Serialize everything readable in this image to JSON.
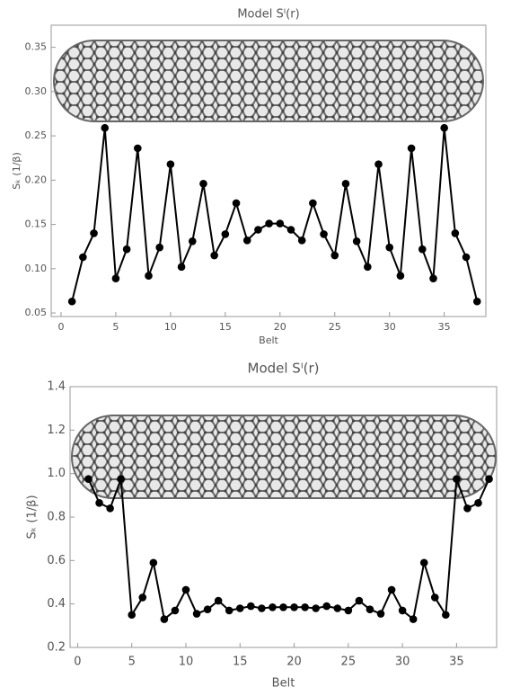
{
  "chart_data": [
    {
      "type": "line",
      "title": "Model Sᴵ(r)",
      "x_label": "Belt",
      "y_label": "Sₖ (1/β)",
      "x": [
        1,
        2,
        3,
        4,
        5,
        6,
        7,
        8,
        9,
        10,
        11,
        12,
        13,
        14,
        15,
        16,
        17,
        18,
        19,
        20,
        21,
        22,
        23,
        24,
        25,
        26,
        27,
        28,
        29,
        30,
        31,
        32,
        33,
        34,
        35,
        36,
        37,
        38
      ],
      "series": [
        {
          "color": "#000000",
          "values": [
            0.063,
            0.113,
            0.14,
            0.259,
            0.089,
            0.122,
            0.236,
            0.092,
            0.124,
            0.218,
            0.102,
            0.131,
            0.196,
            0.115,
            0.139,
            0.174,
            0.132,
            0.144,
            0.151,
            0.151,
            0.144,
            0.132,
            0.174,
            0.139,
            0.115,
            0.196,
            0.131,
            0.102,
            0.218,
            0.124,
            0.092,
            0.236,
            0.122,
            0.089,
            0.259,
            0.14,
            0.113,
            0.063
          ]
        }
      ],
      "xlim": [
        -0.9,
        38.8
      ],
      "xticks": [
        0,
        5,
        10,
        15,
        20,
        25,
        30,
        35
      ],
      "ylim": [
        0.046,
        0.375
      ],
      "yticks": [
        0.05,
        {
          "value": 0.1,
          "label": "0.10"
        },
        0.15,
        {
          "value": 0.2,
          "label": "0.20"
        },
        0.25,
        {
          "value": 0.3,
          "label": "0.30"
        },
        0.35
      ]
    },
    {
      "type": "line",
      "title": "Model Sᴵ(r)",
      "x_label": "Belt",
      "y_label": "Sₖ (1/β)",
      "x": [
        1,
        2,
        3,
        4,
        5,
        6,
        7,
        8,
        9,
        10,
        11,
        12,
        13,
        14,
        15,
        16,
        17,
        18,
        19,
        20,
        21,
        22,
        23,
        24,
        25,
        26,
        27,
        28,
        29,
        30,
        31,
        32,
        33,
        34,
        35,
        36,
        37,
        38
      ],
      "series": [
        {
          "color": "#000000",
          "values": [
            0.975,
            0.865,
            0.84,
            0.975,
            0.35,
            0.43,
            0.59,
            0.33,
            0.37,
            0.465,
            0.355,
            0.375,
            0.415,
            0.37,
            0.38,
            0.39,
            0.38,
            0.385,
            0.385,
            0.385,
            0.385,
            0.38,
            0.39,
            0.38,
            0.37,
            0.415,
            0.375,
            0.355,
            0.465,
            0.37,
            0.33,
            0.59,
            0.43,
            0.35,
            0.975,
            0.84,
            0.865,
            0.975
          ]
        }
      ],
      "xlim": [
        -0.7,
        38.7
      ],
      "xticks": [
        0,
        5,
        10,
        15,
        20,
        25,
        30,
        35
      ],
      "ylim": [
        0.2,
        1.4
      ],
      "yticks": [
        0.2,
        0.4,
        0.6,
        0.8,
        {
          "value": 1.0,
          "label": "1.0"
        },
        1.2,
        1.4
      ]
    }
  ]
}
